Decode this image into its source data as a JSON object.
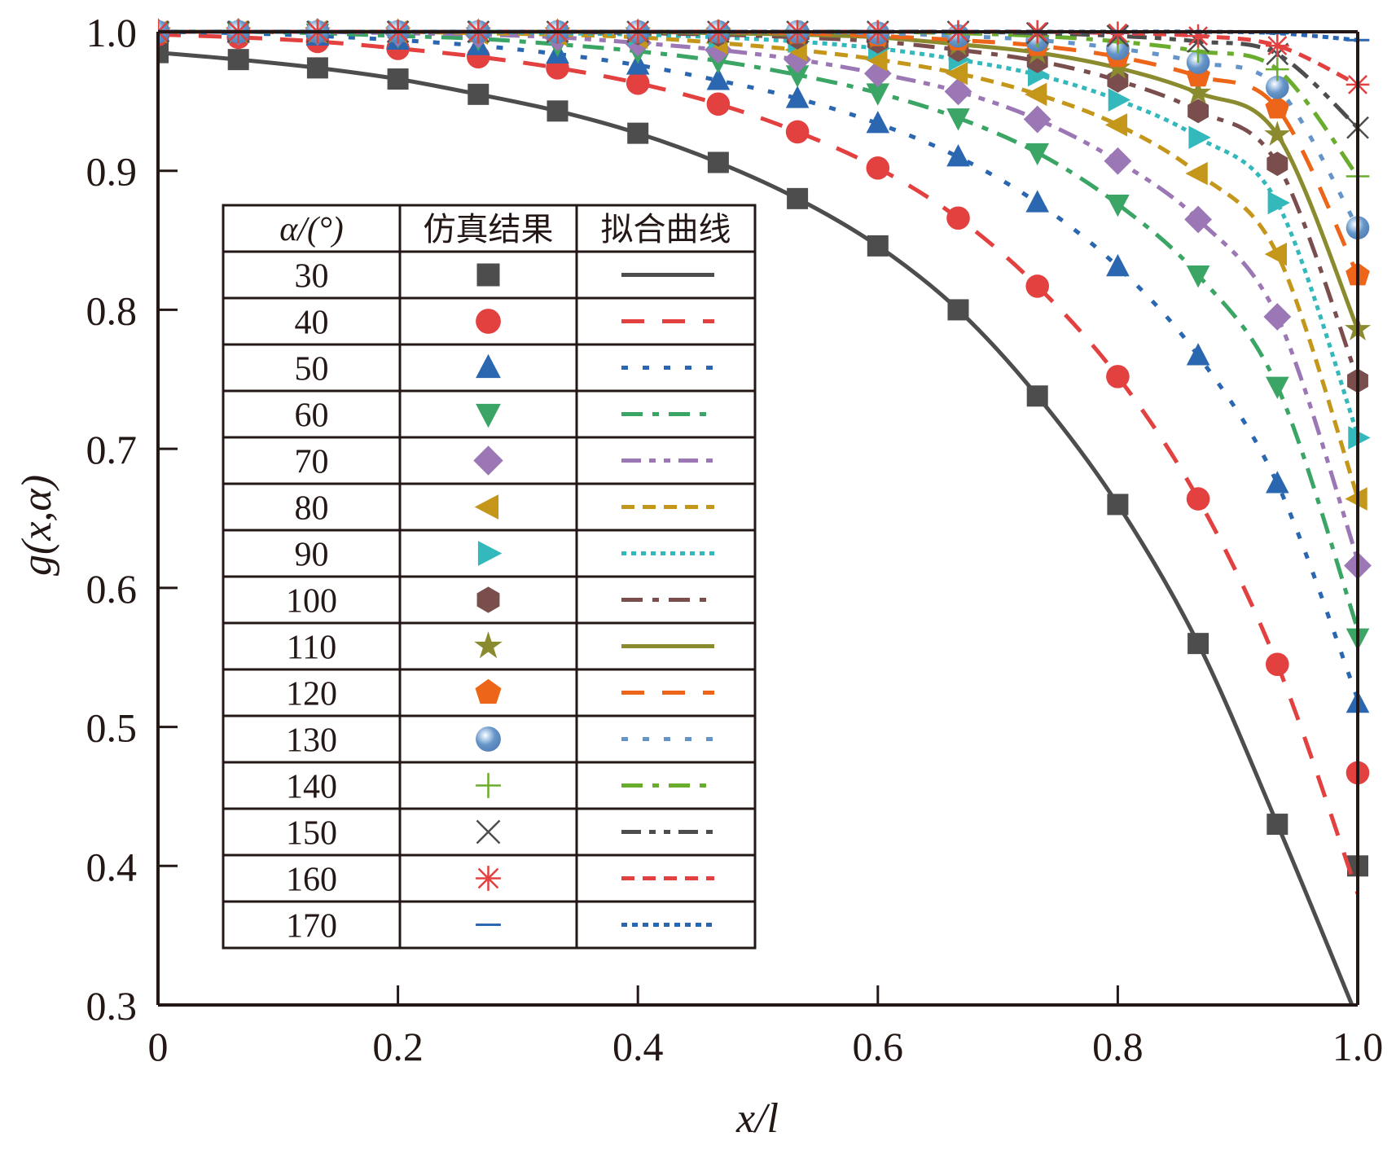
{
  "chart_data": {
    "type": "scatter",
    "title": "",
    "xlabel": "x/l",
    "ylabel": "g(x,α)",
    "xlim": [
      0,
      1.0
    ],
    "ylim": [
      0.3,
      1.0
    ],
    "xticks": [
      "0",
      "0.2",
      "0.4",
      "0.6",
      "0.8",
      "1.0"
    ],
    "xtick_values": [
      0,
      0.2,
      0.4,
      0.6,
      0.8,
      1.0
    ],
    "yticks": [
      "0.3",
      "0.4",
      "0.5",
      "0.6",
      "0.7",
      "0.8",
      "0.9",
      "1.0"
    ],
    "ytick_values": [
      0.3,
      0.4,
      0.5,
      0.6,
      0.7,
      0.8,
      0.9,
      1.0
    ],
    "grid": false,
    "legend": {
      "placement": "center-left",
      "headers": [
        "α/(°)",
        "仿真结果",
        "拟合曲线"
      ]
    },
    "x": [
      0,
      0.067,
      0.133,
      0.2,
      0.267,
      0.333,
      0.4,
      0.467,
      0.533,
      0.6,
      0.667,
      0.733,
      0.8,
      0.867,
      0.933,
      1.0
    ],
    "series": [
      {
        "name": "30",
        "marker": "square",
        "line": "solid",
        "color": "#4d4d4d",
        "values": [
          0.985,
          0.98,
          0.974,
          0.966,
          0.955,
          0.943,
          0.927,
          0.906,
          0.88,
          0.846,
          0.8,
          0.738,
          0.66,
          0.56,
          0.43,
          0.29
        ],
        "last_marker": 0.4
      },
      {
        "name": "40",
        "marker": "circle",
        "line": "dash",
        "color": "#e34040",
        "values": [
          0.998,
          0.996,
          0.993,
          0.988,
          0.982,
          0.974,
          0.963,
          0.948,
          0.928,
          0.902,
          0.866,
          0.817,
          0.752,
          0.664,
          0.545,
          0.38
        ],
        "last_marker": 0.467
      },
      {
        "name": "50",
        "marker": "triangle-up",
        "line": "dot",
        "color": "#2b67b0",
        "values": [
          1.0,
          0.999,
          0.997,
          0.994,
          0.99,
          0.984,
          0.976,
          0.965,
          0.952,
          0.934,
          0.91,
          0.877,
          0.831,
          0.767,
          0.675,
          0.52
        ],
        "last_marker": 0.517
      },
      {
        "name": "60",
        "marker": "triangle-down",
        "line": "dash-dot",
        "color": "#3aa564",
        "values": [
          1.0,
          1.0,
          0.999,
          0.997,
          0.995,
          0.991,
          0.986,
          0.979,
          0.969,
          0.956,
          0.938,
          0.913,
          0.876,
          0.825,
          0.745,
          0.57
        ],
        "last_marker": 0.564
      },
      {
        "name": "70",
        "marker": "diamond",
        "line": "dash-dot-dot",
        "color": "#9b77b5",
        "values": [
          1.0,
          1.0,
          1.0,
          0.999,
          0.998,
          0.996,
          0.992,
          0.987,
          0.98,
          0.97,
          0.957,
          0.937,
          0.907,
          0.865,
          0.795,
          0.62
        ],
        "last_marker": 0.616
      },
      {
        "name": "80",
        "marker": "triangle-left",
        "line": "short-dash",
        "color": "#c4961a",
        "values": [
          1.0,
          1.0,
          1.0,
          1.0,
          0.999,
          0.998,
          0.996,
          0.992,
          0.987,
          0.98,
          0.97,
          0.955,
          0.933,
          0.898,
          0.84,
          0.665
        ],
        "last_marker": 0.664
      },
      {
        "name": "90",
        "marker": "triangle-right",
        "line": "short-dot",
        "color": "#33b8bb",
        "values": [
          1.0,
          1.0,
          1.0,
          1.0,
          1.0,
          0.999,
          0.998,
          0.996,
          0.993,
          0.988,
          0.98,
          0.969,
          0.951,
          0.924,
          0.877,
          0.71
        ],
        "last_marker": 0.708
      },
      {
        "name": "100",
        "marker": "hexagon",
        "line": "dash-dot",
        "color": "#7b4e4e",
        "values": [
          1.0,
          1.0,
          1.0,
          1.0,
          1.0,
          1.0,
          0.999,
          0.998,
          0.996,
          0.993,
          0.987,
          0.979,
          0.965,
          0.943,
          0.905,
          0.75
        ],
        "last_marker": 0.749
      },
      {
        "name": "110",
        "marker": "star",
        "line": "solid",
        "color": "#8a8a2e",
        "values": [
          1.0,
          1.0,
          1.0,
          1.0,
          1.0,
          1.0,
          1.0,
          0.999,
          0.998,
          0.996,
          0.991,
          0.985,
          0.974,
          0.956,
          0.926,
          0.786
        ],
        "last_marker": 0.786
      },
      {
        "name": "120",
        "marker": "pentagon",
        "line": "dash",
        "color": "#ec6519",
        "values": [
          1.0,
          1.0,
          1.0,
          1.0,
          1.0,
          1.0,
          1.0,
          1.0,
          0.999,
          0.997,
          0.994,
          0.99,
          0.982,
          0.968,
          0.945,
          0.825
        ],
        "last_marker": 0.825
      },
      {
        "name": "130",
        "marker": "sphere",
        "line": "dot",
        "color": "#6595c8",
        "values": [
          1.0,
          1.0,
          1.0,
          1.0,
          1.0,
          1.0,
          1.0,
          1.0,
          1.0,
          0.999,
          0.997,
          0.994,
          0.988,
          0.978,
          0.96,
          0.859
        ],
        "last_marker": 0.859
      },
      {
        "name": "140",
        "marker": "plus",
        "line": "dash-dot",
        "color": "#6aad2e",
        "values": [
          1.0,
          1.0,
          1.0,
          1.0,
          1.0,
          1.0,
          1.0,
          1.0,
          1.0,
          1.0,
          0.999,
          0.997,
          0.993,
          0.986,
          0.973,
          0.896
        ],
        "last_marker": 0.896
      },
      {
        "name": "150",
        "marker": "cross",
        "line": "dash-dot-dot",
        "color": "#4d4d4d",
        "values": [
          1.0,
          1.0,
          1.0,
          1.0,
          1.0,
          1.0,
          1.0,
          1.0,
          1.0,
          1.0,
          1.0,
          0.999,
          0.997,
          0.993,
          0.984,
          0.931
        ],
        "last_marker": 0.931
      },
      {
        "name": "160",
        "marker": "asterisk",
        "line": "short-dash",
        "color": "#e34040",
        "values": [
          1.0,
          1.0,
          1.0,
          1.0,
          1.0,
          1.0,
          1.0,
          1.0,
          1.0,
          1.0,
          1.0,
          1.0,
          0.999,
          0.997,
          0.99,
          0.962
        ],
        "last_marker": 0.962
      },
      {
        "name": "170",
        "marker": "minus",
        "line": "fine-dot",
        "color": "#2b67b0",
        "values": [
          1.0,
          1.0,
          1.0,
          1.0,
          1.0,
          1.0,
          1.0,
          1.0,
          1.0,
          1.0,
          1.0,
          1.0,
          1.0,
          1.0,
          0.999,
          0.994
        ],
        "last_marker": 0.994
      }
    ]
  }
}
